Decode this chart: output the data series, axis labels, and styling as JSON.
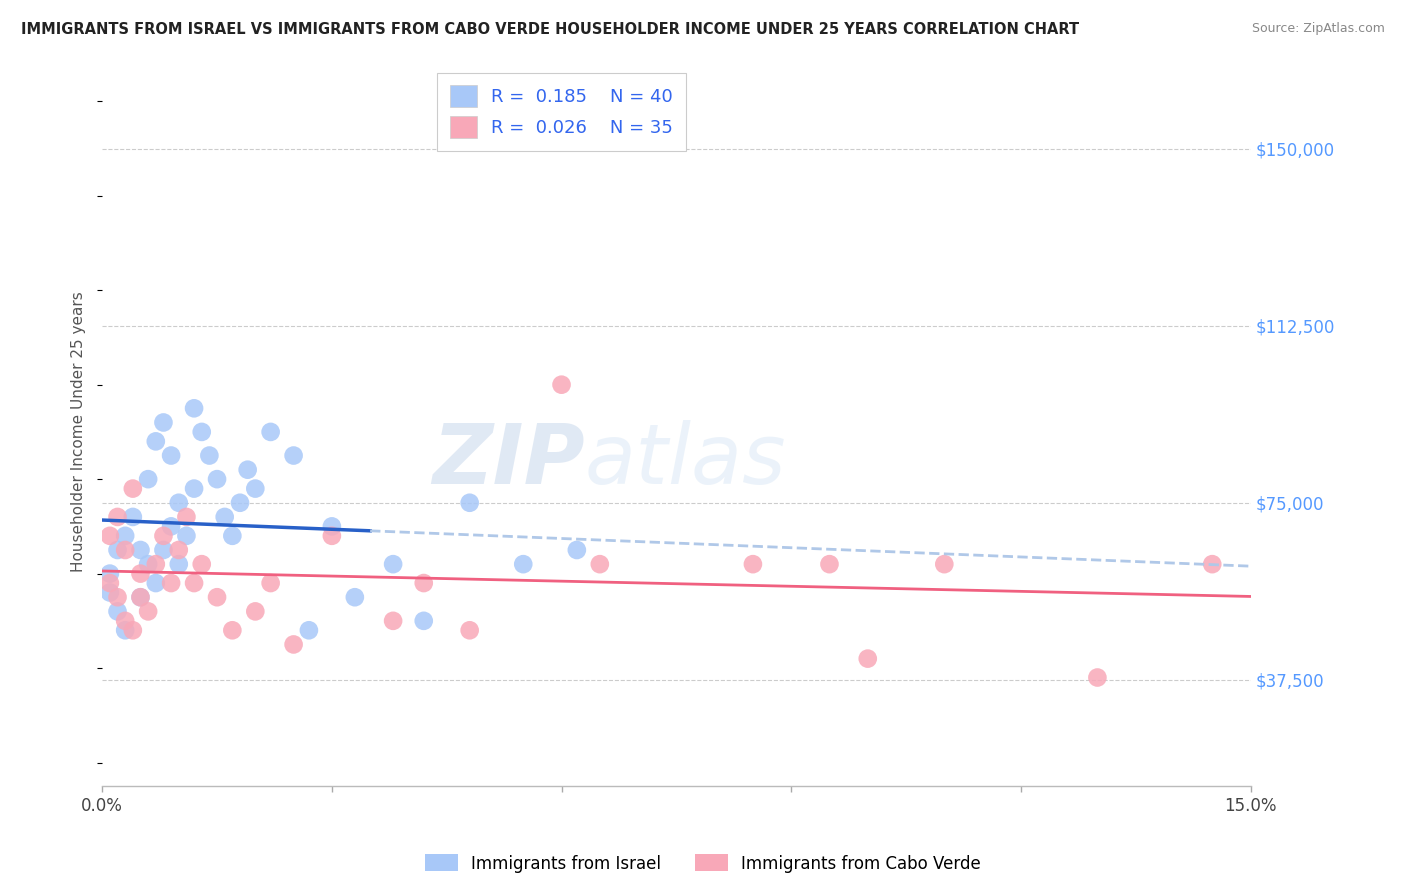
{
  "title": "IMMIGRANTS FROM ISRAEL VS IMMIGRANTS FROM CABO VERDE HOUSEHOLDER INCOME UNDER 25 YEARS CORRELATION CHART",
  "source": "Source: ZipAtlas.com",
  "ylabel": "Householder Income Under 25 years",
  "ytick_labels": [
    "$37,500",
    "$75,000",
    "$112,500",
    "$150,000"
  ],
  "ytick_values": [
    37500,
    75000,
    112500,
    150000
  ],
  "ymax": 165000,
  "ymin": 15000,
  "xmin": 0.0,
  "xmax": 0.15,
  "legend_r_israel": "0.185",
  "legend_n_israel": "40",
  "legend_r_cabo": "0.026",
  "legend_n_cabo": "35",
  "color_israel": "#a8c8f8",
  "color_cabo": "#f8a8b8",
  "color_israel_line": "#2860c8",
  "color_cabo_line": "#f06080",
  "color_israel_dash": "#b0c8e8",
  "watermark_zip": "ZIP",
  "watermark_atlas": "atlas",
  "israel_x": [
    0.001,
    0.001,
    0.002,
    0.002,
    0.003,
    0.003,
    0.004,
    0.005,
    0.005,
    0.006,
    0.006,
    0.007,
    0.007,
    0.008,
    0.008,
    0.009,
    0.009,
    0.01,
    0.01,
    0.011,
    0.012,
    0.012,
    0.013,
    0.014,
    0.015,
    0.016,
    0.017,
    0.018,
    0.019,
    0.02,
    0.022,
    0.025,
    0.027,
    0.03,
    0.033,
    0.038,
    0.042,
    0.048,
    0.055,
    0.062
  ],
  "israel_y": [
    60000,
    56000,
    65000,
    52000,
    68000,
    48000,
    72000,
    65000,
    55000,
    80000,
    62000,
    88000,
    58000,
    92000,
    65000,
    85000,
    70000,
    62000,
    75000,
    68000,
    95000,
    78000,
    90000,
    85000,
    80000,
    72000,
    68000,
    75000,
    82000,
    78000,
    90000,
    85000,
    48000,
    70000,
    55000,
    62000,
    50000,
    75000,
    62000,
    65000
  ],
  "cabo_x": [
    0.001,
    0.001,
    0.002,
    0.002,
    0.003,
    0.003,
    0.004,
    0.004,
    0.005,
    0.005,
    0.006,
    0.007,
    0.008,
    0.009,
    0.01,
    0.011,
    0.012,
    0.013,
    0.015,
    0.017,
    0.02,
    0.022,
    0.025,
    0.03,
    0.038,
    0.042,
    0.048,
    0.06,
    0.065,
    0.085,
    0.095,
    0.1,
    0.11,
    0.13,
    0.145
  ],
  "cabo_y": [
    68000,
    58000,
    72000,
    55000,
    65000,
    50000,
    78000,
    48000,
    60000,
    55000,
    52000,
    62000,
    68000,
    58000,
    65000,
    72000,
    58000,
    62000,
    55000,
    48000,
    52000,
    58000,
    45000,
    68000,
    50000,
    58000,
    48000,
    100000,
    62000,
    62000,
    62000,
    42000,
    62000,
    38000,
    62000
  ]
}
